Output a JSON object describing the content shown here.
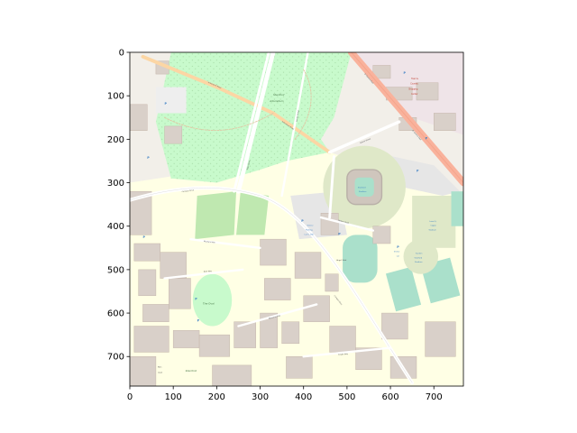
{
  "axes": {
    "x_ticks": [
      "0",
      "100",
      "200",
      "300",
      "400",
      "500",
      "600",
      "700"
    ],
    "y_ticks": [
      "0",
      "100",
      "200",
      "300",
      "400",
      "500",
      "600",
      "700"
    ],
    "xlim": [
      0,
      768
    ],
    "ylim": [
      768,
      0
    ]
  },
  "colors": {
    "background": "#f2efe9",
    "park": "#c8facc",
    "building": "#d9d0c9",
    "road_major": "#fcd6a4",
    "road_trunk": "#f9b29c",
    "parking": "#eeeeee",
    "pitch": "#aae0cb",
    "stadium": "#dfe8c8",
    "campus": "#ffffe5"
  },
  "labels": {
    "arboretum_line1": "Stanford",
    "arboretum_line2": "Arboretum",
    "town_country_1": "Town &",
    "town_country_2": "Country",
    "town_country_3": "Shopping",
    "town_country_4": "Center",
    "stadium_1": "Stanford",
    "stadium_2": "Stadium",
    "parking_lot_1": "Galvez",
    "parking_lot_2": "Parking",
    "parking_lot_3": "Lot 5, 180",
    "angell_field": "Angell Field",
    "maloney_1": "Laird Q.",
    "maloney_2": "Cagan",
    "maloney_3": "Stadium",
    "sunken_1": "Sunken",
    "sunken_2": "Stanford",
    "sunken_3": "Stadium",
    "oval": "The Oval",
    "main_quad_1": "Main",
    "main_quad_2": "Quad",
    "stanford_bottom": "Stanford",
    "visitor_1": "Visitor",
    "visitor_2": "Lot",
    "palm_drive": "Palm Drive",
    "arboretum_road": "Arboretum Road",
    "el_camino": "El Camino Real",
    "campus_drive": "Campus Drive",
    "galvez_street": "Galvez Street",
    "museum_way": "Museum Way",
    "roth_way": "Roth Way",
    "lasuen_street": "Lasuen Street",
    "memorial_way": "Memorial Way",
    "nelson_road": "Nelson Road",
    "knight_way": "Knight Way",
    "p": "P"
  }
}
